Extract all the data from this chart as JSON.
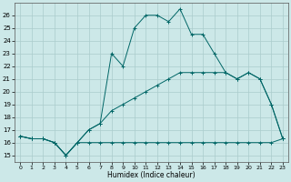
{
  "xlabel": "Humidex (Indice chaleur)",
  "bg_color": "#cce8e8",
  "grid_color": "#aacccc",
  "line_color": "#006666",
  "xlim": [
    -0.5,
    23.5
  ],
  "ylim": [
    14.5,
    27.0
  ],
  "xticks": [
    0,
    1,
    2,
    3,
    4,
    5,
    6,
    7,
    8,
    9,
    10,
    11,
    12,
    13,
    14,
    15,
    16,
    17,
    18,
    19,
    20,
    21,
    22,
    23
  ],
  "yticks": [
    15,
    16,
    17,
    18,
    19,
    20,
    21,
    22,
    23,
    24,
    25,
    26
  ],
  "curve_main_x": [
    0,
    1,
    2,
    3,
    4,
    5,
    6,
    7,
    8,
    9,
    10,
    11,
    12,
    13,
    14,
    15,
    16,
    17,
    18,
    19,
    20,
    21,
    22,
    23
  ],
  "curve_main_y": [
    16.5,
    16.3,
    16.3,
    16.0,
    15.0,
    16.0,
    17.0,
    17.5,
    23.0,
    22.0,
    25.0,
    26.0,
    26.0,
    25.5,
    26.5,
    24.5,
    24.5,
    23.0,
    21.5,
    21.0,
    21.5,
    21.0,
    19.0,
    16.3
  ],
  "curve_mid_x": [
    0,
    1,
    2,
    3,
    4,
    5,
    6,
    7,
    8,
    9,
    10,
    11,
    12,
    13,
    14,
    15,
    16,
    17,
    18,
    19,
    20,
    21,
    22,
    23
  ],
  "curve_mid_y": [
    16.5,
    16.3,
    16.3,
    16.0,
    15.0,
    16.0,
    17.0,
    17.5,
    18.5,
    19.0,
    19.5,
    20.0,
    20.5,
    21.0,
    21.5,
    21.5,
    21.5,
    21.5,
    21.5,
    21.0,
    21.5,
    21.0,
    19.0,
    16.3
  ],
  "curve_flat_x": [
    0,
    1,
    2,
    3,
    4,
    5,
    6,
    7,
    8,
    9,
    10,
    11,
    12,
    13,
    14,
    15,
    16,
    17,
    18,
    19,
    20,
    21,
    22,
    23
  ],
  "curve_flat_y": [
    16.5,
    16.3,
    16.3,
    16.0,
    15.0,
    16.0,
    16.0,
    16.0,
    16.0,
    16.0,
    16.0,
    16.0,
    16.0,
    16.0,
    16.0,
    16.0,
    16.0,
    16.0,
    16.0,
    16.0,
    16.0,
    16.0,
    16.0,
    16.3
  ]
}
